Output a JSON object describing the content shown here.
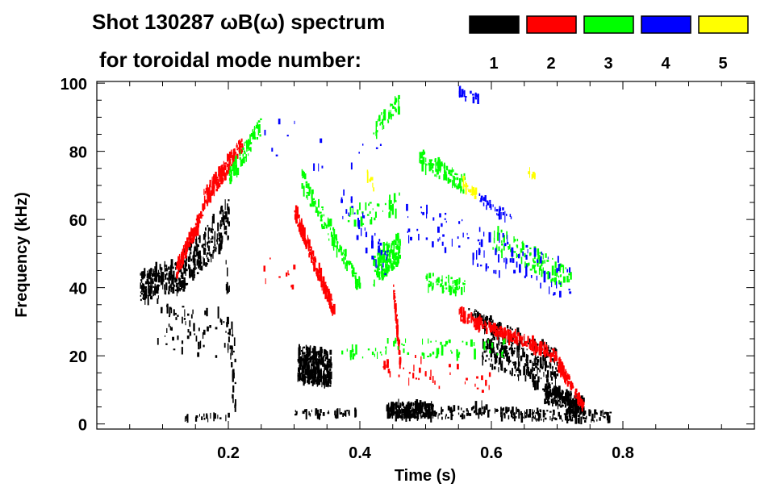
{
  "chart_data": {
    "type": "heatmap",
    "title": "Shot 130287 ωB(ω) spectrum",
    "subtitle": "for toroidal mode number:",
    "xlabel": "Time (s)",
    "ylabel": "Frequency (kHz)",
    "xlim": [
      0,
      1.0
    ],
    "ylim": [
      -1.5,
      100.5
    ],
    "xticks": [
      0.2,
      0.4,
      0.6,
      0.8
    ],
    "xtick_labels": [
      "0.2",
      "0.4",
      "0.6",
      "0.8"
    ],
    "yticks": [
      0,
      20,
      40,
      60,
      80,
      100
    ],
    "ytick_labels": [
      "0",
      "20",
      "40",
      "60",
      "80",
      "100"
    ],
    "x_minor_step": 0.05,
    "y_minor_step": 5,
    "legend_position": "top-right",
    "series": [
      {
        "name": "1",
        "color": "#000000",
        "features": [
          {
            "t": [
              0.065,
              0.13
            ],
            "f": [
              40,
              44
            ],
            "spread": 9,
            "density": 220
          },
          {
            "t": [
              0.13,
              0.2
            ],
            "f": [
              45,
              60
            ],
            "spread": 12,
            "density": 200
          },
          {
            "t": [
              0.09,
              0.2
            ],
            "f": [
              30,
              25
            ],
            "spread": 14,
            "density": 60
          },
          {
            "t": [
              0.195,
              0.21
            ],
            "f": [
              40,
              10
            ],
            "spread": 25,
            "density": 40
          },
          {
            "t": [
              0.305,
              0.355
            ],
            "f": [
              18,
              16
            ],
            "spread": 10,
            "density": 320
          },
          {
            "t": [
              0.3,
              0.4
            ],
            "f": [
              3,
              3
            ],
            "spread": 2,
            "density": 40
          },
          {
            "t": [
              0.44,
              0.51
            ],
            "f": [
              4,
              4
            ],
            "spread": 4,
            "density": 220
          },
          {
            "t": [
              0.51,
              0.6
            ],
            "f": [
              3,
              4
            ],
            "spread": 3,
            "density": 60
          },
          {
            "t": [
              0.585,
              0.7
            ],
            "f": [
              25,
              15
            ],
            "spread": 14,
            "density": 360
          },
          {
            "t": [
              0.68,
              0.74
            ],
            "f": [
              9,
              5
            ],
            "spread": 5,
            "density": 200
          },
          {
            "t": [
              0.6,
              0.78
            ],
            "f": [
              3,
              2
            ],
            "spread": 3,
            "density": 160
          },
          {
            "t": [
              0.56,
              0.6
            ],
            "f": [
              33,
              30
            ],
            "spread": 3,
            "density": 30
          },
          {
            "t": [
              0.13,
              0.2
            ],
            "f": [
              2,
              2
            ],
            "spread": 2,
            "density": 20
          }
        ]
      },
      {
        "name": "2",
        "color": "#ff0000",
        "features": [
          {
            "t": [
              0.12,
              0.16
            ],
            "f": [
              45,
              62
            ],
            "spread": 4,
            "density": 120
          },
          {
            "t": [
              0.16,
              0.22
            ],
            "f": [
              65,
              82
            ],
            "spread": 5,
            "density": 200
          },
          {
            "t": [
              0.3,
              0.36
            ],
            "f": [
              62,
              33
            ],
            "spread": 4,
            "density": 180
          },
          {
            "t": [
              0.45,
              0.46
            ],
            "f": [
              40,
              18
            ],
            "spread": 3,
            "density": 60
          },
          {
            "t": [
              0.55,
              0.7
            ],
            "f": [
              32,
              20
            ],
            "spread": 3,
            "density": 220
          },
          {
            "t": [
              0.7,
              0.74
            ],
            "f": [
              18,
              5
            ],
            "spread": 3,
            "density": 80
          },
          {
            "t": [
              0.42,
              0.6
            ],
            "f": [
              18,
              12
            ],
            "spread": 8,
            "density": 40
          },
          {
            "t": [
              0.25,
              0.3
            ],
            "f": [
              45,
              45
            ],
            "spread": 10,
            "density": 10
          }
        ]
      },
      {
        "name": "3",
        "color": "#00ff00",
        "features": [
          {
            "t": [
              0.2,
              0.25
            ],
            "f": [
              72,
              88
            ],
            "spread": 5,
            "density": 80
          },
          {
            "t": [
              0.31,
              0.4
            ],
            "f": [
              72,
              40
            ],
            "spread": 6,
            "density": 120
          },
          {
            "t": [
              0.42,
              0.46
            ],
            "f": [
              45,
              52
            ],
            "spread": 9,
            "density": 160
          },
          {
            "t": [
              0.42,
              0.46
            ],
            "f": [
              86,
              95
            ],
            "spread": 5,
            "density": 40
          },
          {
            "t": [
              0.49,
              0.56
            ],
            "f": [
              78,
              70
            ],
            "spread": 5,
            "density": 100
          },
          {
            "t": [
              0.5,
              0.56
            ],
            "f": [
              42,
              40
            ],
            "spread": 5,
            "density": 60
          },
          {
            "t": [
              0.6,
              0.72
            ],
            "f": [
              55,
              42
            ],
            "spread": 7,
            "density": 110
          },
          {
            "t": [
              0.37,
              0.62
            ],
            "f": [
              22,
              22
            ],
            "spread": 5,
            "density": 70
          },
          {
            "t": [
              0.38,
              0.46
            ],
            "f": [
              60,
              65
            ],
            "spread": 6,
            "density": 40
          }
        ]
      },
      {
        "name": "4",
        "color": "#0000ff",
        "features": [
          {
            "t": [
              0.37,
              0.45
            ],
            "f": [
              65,
              45
            ],
            "spread": 10,
            "density": 40
          },
          {
            "t": [
              0.47,
              0.72
            ],
            "f": [
              60,
              42
            ],
            "spread": 12,
            "density": 110
          },
          {
            "t": [
              0.55,
              0.58
            ],
            "f": [
              97,
              95
            ],
            "spread": 3,
            "density": 20
          },
          {
            "t": [
              0.58,
              0.63
            ],
            "f": [
              66,
              60
            ],
            "spread": 3,
            "density": 30
          },
          {
            "t": [
              0.25,
              0.45
            ],
            "f": [
              85,
              75
            ],
            "spread": 12,
            "density": 15
          }
        ]
      },
      {
        "name": "5",
        "color": "#ffff00",
        "features": [
          {
            "t": [
              0.41,
              0.42
            ],
            "f": [
              73,
              70
            ],
            "spread": 3,
            "density": 12
          },
          {
            "t": [
              0.555,
              0.575
            ],
            "f": [
              71,
              67
            ],
            "spread": 3,
            "density": 25
          },
          {
            "t": [
              0.655,
              0.665
            ],
            "f": [
              74,
              72
            ],
            "spread": 2,
            "density": 8
          }
        ]
      }
    ]
  }
}
